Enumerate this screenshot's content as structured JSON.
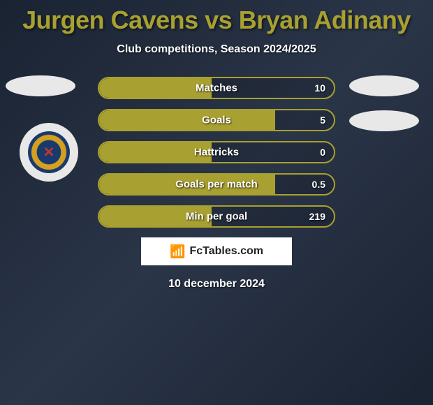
{
  "title": "Jurgen Cavens vs Bryan Adinany",
  "subtitle": "Club competitions, Season 2024/2025",
  "colors": {
    "accent": "#a8a030",
    "bg_dark": "#1a2332",
    "text": "#ffffff"
  },
  "stats": [
    {
      "label": "Matches",
      "value": "10",
      "fill_pct": 48
    },
    {
      "label": "Goals",
      "value": "5",
      "fill_pct": 75
    },
    {
      "label": "Hattricks",
      "value": "0",
      "fill_pct": 48
    },
    {
      "label": "Goals per match",
      "value": "0.5",
      "fill_pct": 75
    },
    {
      "label": "Min per goal",
      "value": "219",
      "fill_pct": 48
    }
  ],
  "brand": "FcTables.com",
  "date": "10 december 2024"
}
